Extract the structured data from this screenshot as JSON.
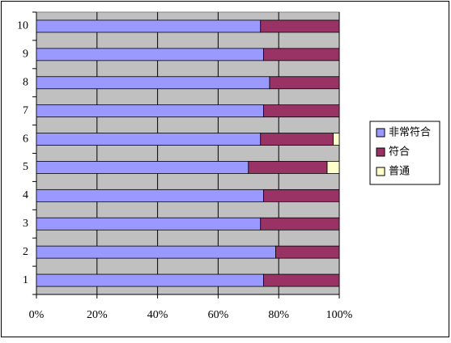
{
  "chart_data": {
    "type": "bar",
    "orientation": "horizontal",
    "stacked": true,
    "categories": [
      "1",
      "2",
      "3",
      "4",
      "5",
      "6",
      "7",
      "8",
      "9",
      "10"
    ],
    "series": [
      {
        "name": "非常符合",
        "color": "#9999ff",
        "values": [
          75,
          79,
          74,
          75,
          70,
          74,
          75,
          77,
          75,
          74
        ]
      },
      {
        "name": "符合",
        "color": "#993366",
        "values": [
          25,
          21,
          26,
          25,
          26,
          24,
          25,
          23,
          25,
          26
        ]
      },
      {
        "name": "普通",
        "color": "#ffffcc",
        "values": [
          0,
          0,
          0,
          0,
          4,
          2,
          0,
          0,
          0,
          0
        ]
      }
    ],
    "xlim": [
      0,
      100
    ],
    "xticks": [
      {
        "value": 0,
        "label": "0%"
      },
      {
        "value": 20,
        "label": "20%"
      },
      {
        "value": 40,
        "label": "40%"
      },
      {
        "value": 60,
        "label": "60%"
      },
      {
        "value": 80,
        "label": "80%"
      },
      {
        "value": 100,
        "label": "100%"
      }
    ],
    "grid": true,
    "legend": "right",
    "background": "#c0c0c0"
  }
}
